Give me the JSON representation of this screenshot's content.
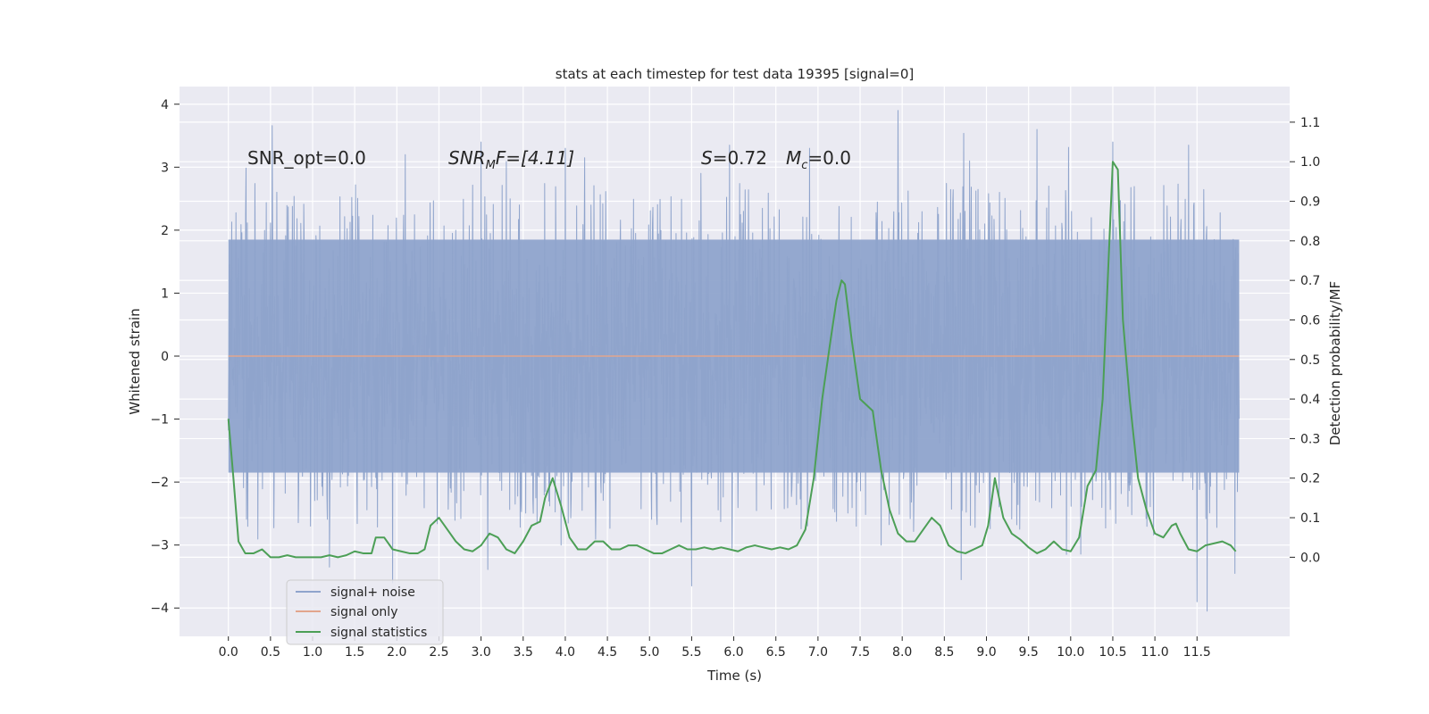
{
  "chart_data": {
    "type": "line",
    "title": "stats at each timestep for test data 19395 [signal=0]",
    "xlabel": "Time (s)",
    "ylabel": "Whitened strain",
    "ylabel_right": "Detection probability/MF",
    "xlim": [
      -0.58,
      12.6
    ],
    "ylim": [
      -4.45,
      4.28
    ],
    "ylim_right": [
      -0.2,
      1.19
    ],
    "x_ticks": [
      0.0,
      0.5,
      1.0,
      1.5,
      2.0,
      2.5,
      3.0,
      3.5,
      4.0,
      4.5,
      5.0,
      5.5,
      6.0,
      6.5,
      7.0,
      7.5,
      8.0,
      8.5,
      9.0,
      9.5,
      10.0,
      10.5,
      11.0,
      11.5
    ],
    "x_tick_labels": [
      "0.0",
      "0.5",
      "1.0",
      "1.5",
      "2.0",
      "2.5",
      "3.0",
      "3.5",
      "4.0",
      "4.5",
      "5.0",
      "5.5",
      "6.0",
      "6.5",
      "7.0",
      "7.5",
      "8.0",
      "8.5",
      "9.0",
      "9.5",
      "10.0",
      "10.5",
      "11.0",
      "11.5"
    ],
    "y_ticks": [
      4,
      3,
      2,
      1,
      0,
      -1,
      -2,
      -3,
      -4
    ],
    "y_tick_labels": [
      "4",
      "3",
      "2",
      "1",
      "0",
      "−1",
      "−2",
      "−3",
      "−4"
    ],
    "y_ticks_right": [
      1.1,
      1.0,
      0.9,
      0.8,
      0.7,
      0.6,
      0.5,
      0.4,
      0.3,
      0.2,
      0.1,
      0.0
    ],
    "y_tick_labels_right": [
      "1.1",
      "1.0",
      "0.9",
      "0.8",
      "0.7",
      "0.6",
      "0.5",
      "0.4",
      "0.3",
      "0.2",
      "0.1",
      "0.0"
    ],
    "grid": true,
    "legend_position": "lower-left",
    "annotations": {
      "snr_opt": "SNR_opt=0.0",
      "snr_mf_main": "SNR",
      "snr_mf_sub": "M",
      "snr_mf_rest": "F=[4.11]",
      "s_main": "S",
      "s_rest": "=0.72",
      "mc_main": "M",
      "mc_sub": "c",
      "mc_rest": "=0.0"
    },
    "series": [
      {
        "name": "signal+ noise",
        "color": "#8fa4cc",
        "kind": "noise",
        "x_range": [
          0.0,
          12.0
        ],
        "typical_range": [
          -1.85,
          1.85
        ],
        "upper_peaks": [
          [
            0.52,
            3.66
          ],
          [
            2.1,
            3.2
          ],
          [
            3.0,
            3.4
          ],
          [
            4.0,
            3.3
          ],
          [
            5.95,
            3.35
          ],
          [
            6.9,
            3.3
          ],
          [
            7.95,
            3.9
          ],
          [
            8.8,
            3.1
          ],
          [
            9.6,
            3.6
          ],
          [
            10.5,
            3.4
          ],
          [
            11.4,
            3.35
          ],
          [
            11.95,
            2.95
          ]
        ],
        "lower_peaks": [
          [
            1.2,
            -3.35
          ],
          [
            1.95,
            -3.6
          ],
          [
            3.95,
            -3.0
          ],
          [
            5.5,
            -3.65
          ],
          [
            5.98,
            -3.05
          ],
          [
            7.75,
            -3.0
          ],
          [
            8.7,
            -3.55
          ],
          [
            9.95,
            -3.15
          ],
          [
            11.5,
            -3.9
          ],
          [
            11.62,
            -4.05
          ],
          [
            11.95,
            -3.45
          ]
        ]
      },
      {
        "name": "signal only",
        "color": "#e2a58d",
        "kind": "constant",
        "x": [
          0.0,
          12.0
        ],
        "y": [
          0.0,
          0.0
        ]
      },
      {
        "name": "signal statistics",
        "color": "#4c9f56",
        "kind": "line",
        "axis": "right",
        "x": [
          0.0,
          0.06,
          0.12,
          0.2,
          0.3,
          0.4,
          0.5,
          0.6,
          0.7,
          0.8,
          0.9,
          1.0,
          1.1,
          1.2,
          1.3,
          1.4,
          1.5,
          1.6,
          1.7,
          1.75,
          1.85,
          1.95,
          2.05,
          2.15,
          2.25,
          2.33,
          2.4,
          2.5,
          2.6,
          2.7,
          2.8,
          2.9,
          3.0,
          3.1,
          3.2,
          3.3,
          3.4,
          3.5,
          3.6,
          3.7,
          3.76,
          3.85,
          3.95,
          4.05,
          4.15,
          4.25,
          4.35,
          4.45,
          4.55,
          4.65,
          4.75,
          4.85,
          4.95,
          5.05,
          5.15,
          5.25,
          5.35,
          5.45,
          5.55,
          5.65,
          5.75,
          5.85,
          5.95,
          6.05,
          6.15,
          6.25,
          6.35,
          6.45,
          6.55,
          6.65,
          6.75,
          6.85,
          6.95,
          7.05,
          7.15,
          7.22,
          7.28,
          7.32,
          7.4,
          7.5,
          7.55,
          7.65,
          7.75,
          7.85,
          7.95,
          8.05,
          8.15,
          8.25,
          8.35,
          8.45,
          8.55,
          8.65,
          8.75,
          8.85,
          8.95,
          9.02,
          9.1,
          9.2,
          9.3,
          9.4,
          9.5,
          9.6,
          9.7,
          9.8,
          9.9,
          10.0,
          10.1,
          10.2,
          10.3,
          10.38,
          10.45,
          10.5,
          10.56,
          10.62,
          10.7,
          10.8,
          10.9,
          11.0,
          11.1,
          11.2,
          11.25,
          11.3,
          11.4,
          11.5,
          11.6,
          11.7,
          11.8,
          11.9,
          11.96
        ],
        "y": [
          0.35,
          0.2,
          0.04,
          0.01,
          0.01,
          0.02,
          0.0,
          0.0,
          0.005,
          0.0,
          0.0,
          0.0,
          0.0,
          0.005,
          0.0,
          0.005,
          0.015,
          0.01,
          0.01,
          0.05,
          0.05,
          0.02,
          0.015,
          0.01,
          0.01,
          0.02,
          0.08,
          0.1,
          0.07,
          0.04,
          0.02,
          0.015,
          0.03,
          0.06,
          0.05,
          0.02,
          0.01,
          0.04,
          0.08,
          0.09,
          0.15,
          0.2,
          0.13,
          0.05,
          0.02,
          0.02,
          0.04,
          0.04,
          0.02,
          0.02,
          0.03,
          0.03,
          0.02,
          0.01,
          0.01,
          0.02,
          0.03,
          0.02,
          0.02,
          0.025,
          0.02,
          0.025,
          0.02,
          0.015,
          0.025,
          0.03,
          0.025,
          0.02,
          0.025,
          0.02,
          0.03,
          0.07,
          0.2,
          0.4,
          0.55,
          0.65,
          0.7,
          0.69,
          0.55,
          0.4,
          0.39,
          0.37,
          0.22,
          0.12,
          0.06,
          0.04,
          0.04,
          0.07,
          0.1,
          0.08,
          0.03,
          0.015,
          0.01,
          0.02,
          0.03,
          0.08,
          0.2,
          0.1,
          0.06,
          0.045,
          0.025,
          0.01,
          0.02,
          0.04,
          0.02,
          0.015,
          0.05,
          0.18,
          0.22,
          0.4,
          0.75,
          1.0,
          0.98,
          0.6,
          0.4,
          0.2,
          0.12,
          0.06,
          0.05,
          0.08,
          0.085,
          0.06,
          0.02,
          0.015,
          0.03,
          0.035,
          0.04,
          0.03,
          0.015
        ]
      }
    ]
  }
}
